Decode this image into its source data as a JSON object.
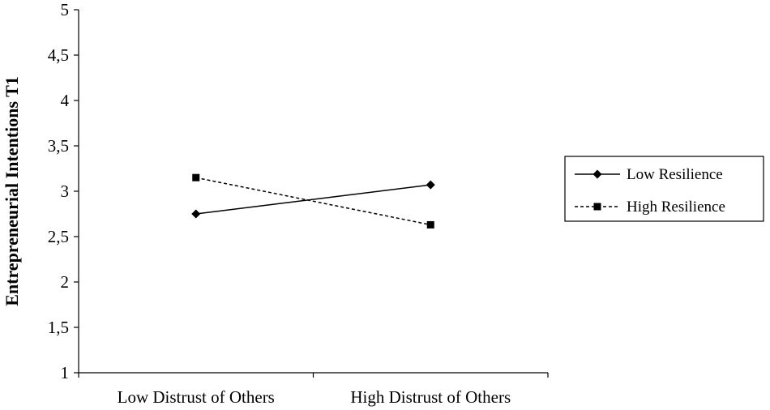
{
  "chart_data": {
    "type": "line",
    "title": "",
    "xlabel": "",
    "ylabel": "Entrepreneurial Intentions T1",
    "categories": [
      "Low Distrust of Others",
      "High Distrust of Others"
    ],
    "ylim": [
      1,
      5
    ],
    "yticks": [
      "1",
      "1,5",
      "2",
      "2,5",
      "3",
      "3,5",
      "4",
      "4,5",
      "5"
    ],
    "ytick_values": [
      1,
      1.5,
      2,
      2.5,
      3,
      3.5,
      4,
      4.5,
      5
    ],
    "grid": false,
    "legend_position": "right",
    "series": [
      {
        "name": "Low Resilience",
        "values": [
          2.75,
          3.07
        ],
        "marker": "diamond",
        "line": "solid",
        "color": "#000000"
      },
      {
        "name": "High Resilience",
        "values": [
          3.15,
          2.63
        ],
        "marker": "square",
        "line": "dashed",
        "color": "#000000"
      }
    ]
  }
}
